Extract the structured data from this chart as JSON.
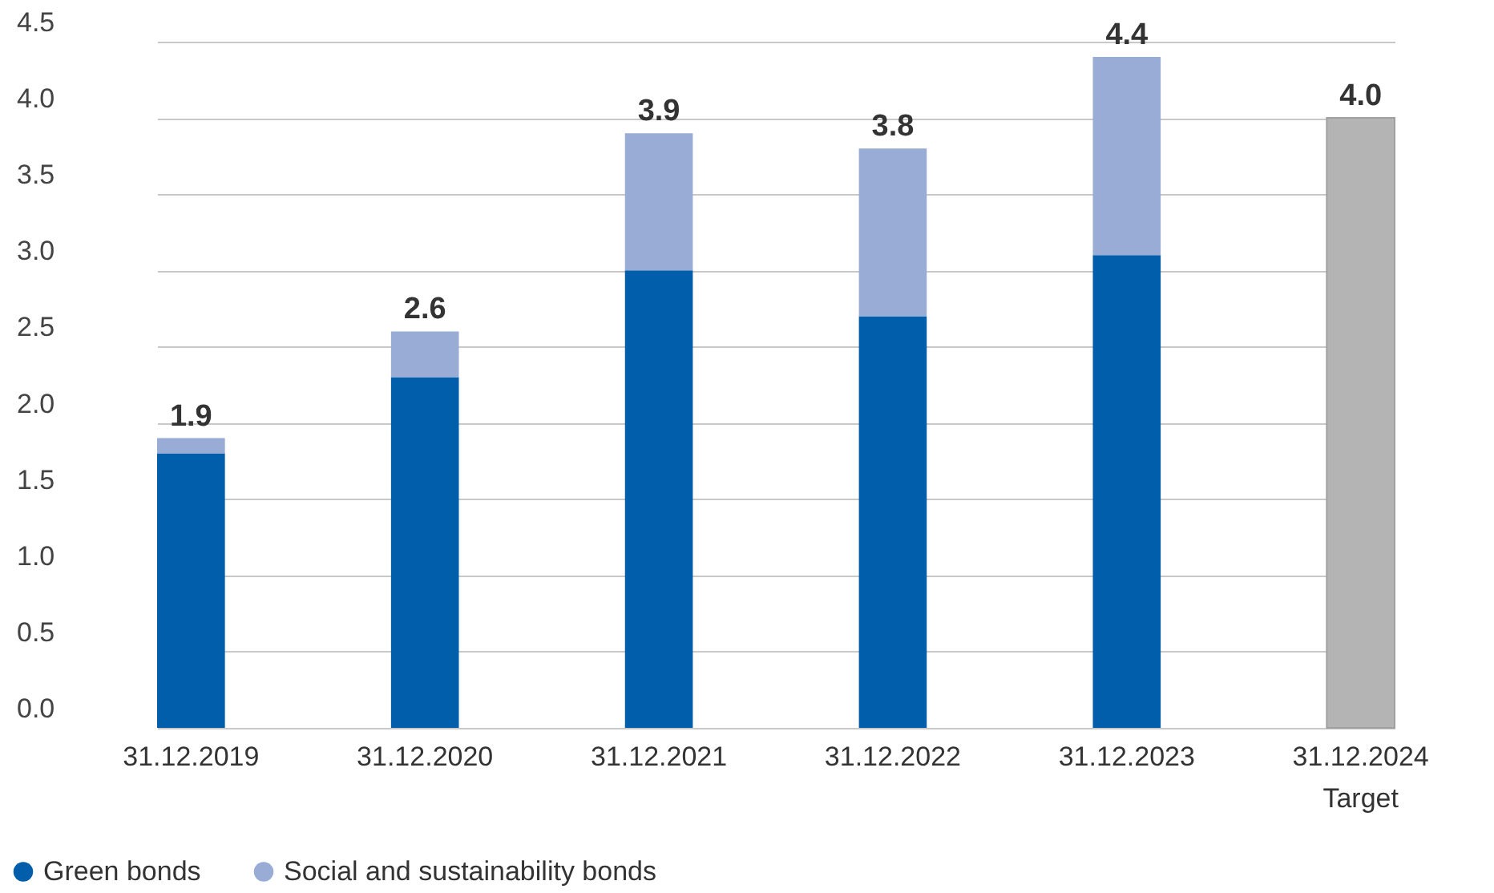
{
  "chart_data": {
    "type": "bar",
    "stacked": true,
    "categories": [
      "31.12.2019",
      "31.12.2020",
      "31.12.2021",
      "31.12.2022",
      "31.12.2023",
      "31.12.2024\nTarget"
    ],
    "series": [
      {
        "name": "Green bonds",
        "color": "#005eaa",
        "values": [
          1.8,
          2.3,
          3.0,
          2.7,
          3.1,
          null
        ]
      },
      {
        "name": "Social and sustainability bonds",
        "color": "#98acd5",
        "values": [
          0.1,
          0.3,
          0.9,
          1.1,
          1.3,
          null
        ]
      },
      {
        "color": "#b4b4b4",
        "values": [
          null,
          null,
          null,
          null,
          null,
          4.0
        ]
      }
    ],
    "totals": [
      "1.9",
      "2.6",
      "3.9",
      "3.8",
      "4.4",
      "4.0"
    ],
    "ylim": [
      0,
      4.5
    ],
    "yticks": [
      {
        "value": 0,
        "label": "0.0"
      },
      0.5,
      {
        "value": 1,
        "label": "1.0"
      },
      1.5,
      {
        "value": 2,
        "label": "2.0"
      },
      2.5,
      {
        "value": 3,
        "label": "3.0"
      },
      3.5,
      {
        "value": 4,
        "label": "4.0"
      },
      4.5
    ],
    "grid": "y",
    "legend": "bottom left"
  }
}
